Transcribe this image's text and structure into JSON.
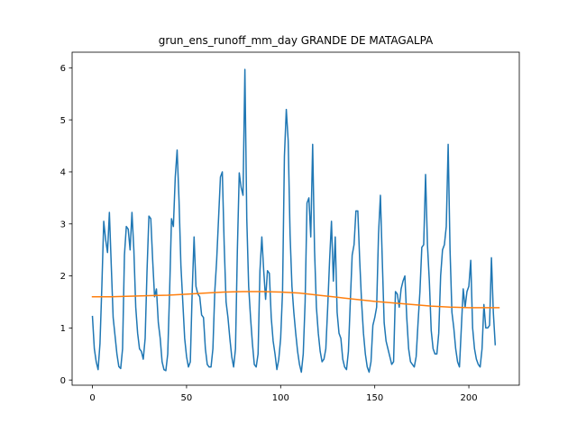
{
  "chart_data": {
    "type": "line",
    "title": "grun_ens_runoff_mm_day GRANDE DE MATAGALPA",
    "xlabel": "",
    "ylabel": "",
    "xlim": [
      -10.8,
      226.8
    ],
    "ylim": [
      -0.1,
      6.3
    ],
    "xticks": [
      0,
      50,
      100,
      150,
      200
    ],
    "yticks": [
      0,
      1,
      2,
      3,
      4,
      5,
      6
    ],
    "grid": false,
    "legend": "none",
    "series": [
      {
        "color": "#1f77b4",
        "values": [
          1.22,
          0.6,
          0.35,
          0.2,
          0.7,
          1.8,
          3.05,
          2.7,
          2.45,
          3.22,
          2.2,
          1.2,
          0.85,
          0.5,
          0.26,
          0.22,
          0.6,
          2.4,
          2.95,
          2.9,
          2.5,
          3.22,
          2.5,
          1.4,
          0.9,
          0.6,
          0.55,
          0.4,
          0.8,
          2.1,
          3.15,
          3.1,
          2.3,
          1.6,
          1.75,
          1.1,
          0.8,
          0.35,
          0.2,
          0.18,
          0.5,
          1.7,
          3.1,
          2.95,
          3.9,
          4.42,
          3.45,
          2.2,
          1.5,
          0.8,
          0.45,
          0.25,
          0.35,
          1.7,
          2.75,
          1.8,
          1.65,
          1.6,
          1.25,
          1.2,
          0.6,
          0.3,
          0.25,
          0.25,
          0.6,
          1.7,
          2.3,
          3.1,
          3.9,
          4.0,
          2.6,
          1.5,
          1.2,
          0.8,
          0.45,
          0.25,
          0.6,
          2.5,
          3.98,
          3.7,
          3.55,
          5.97,
          3.1,
          1.8,
          1.2,
          0.7,
          0.3,
          0.25,
          0.5,
          2.1,
          2.75,
          2.1,
          1.55,
          2.1,
          2.05,
          1.2,
          0.75,
          0.5,
          0.2,
          0.4,
          0.8,
          1.7,
          4.3,
          5.2,
          4.6,
          2.8,
          1.8,
          1.3,
          0.9,
          0.55,
          0.3,
          0.15,
          0.5,
          1.5,
          3.4,
          3.5,
          2.75,
          4.53,
          2.5,
          1.4,
          0.9,
          0.55,
          0.35,
          0.4,
          0.6,
          1.4,
          2.3,
          3.05,
          1.9,
          2.75,
          1.3,
          0.9,
          0.8,
          0.4,
          0.25,
          0.2,
          0.55,
          1.5,
          2.4,
          2.6,
          3.25,
          3.25,
          2.3,
          1.5,
          0.9,
          0.5,
          0.25,
          0.15,
          0.35,
          1.05,
          1.2,
          1.4,
          2.8,
          3.55,
          2.3,
          1.1,
          0.75,
          0.6,
          0.45,
          0.3,
          0.35,
          1.7,
          1.65,
          1.4,
          1.75,
          1.9,
          2.0,
          1.2,
          0.6,
          0.35,
          0.3,
          0.25,
          0.45,
          1.1,
          1.7,
          2.55,
          2.6,
          3.95,
          2.6,
          1.9,
          0.95,
          0.6,
          0.5,
          0.5,
          0.9,
          2.0,
          2.5,
          2.6,
          2.95,
          4.53,
          2.5,
          1.3,
          1.0,
          0.6,
          0.35,
          0.25,
          1.0,
          1.75,
          1.4,
          1.7,
          1.8,
          2.3,
          1.0,
          0.6,
          0.4,
          0.3,
          0.25,
          0.6,
          1.45,
          1.0,
          1.0,
          1.05,
          2.35,
          1.3,
          0.68
        ]
      },
      {
        "color": "#ff7f0e",
        "x": [
          0,
          10,
          20,
          30,
          40,
          50,
          60,
          70,
          80,
          90,
          100,
          110,
          120,
          130,
          140,
          150,
          160,
          170,
          180,
          190,
          200,
          210,
          216
        ],
        "values": [
          1.6,
          1.6,
          1.61,
          1.62,
          1.63,
          1.65,
          1.67,
          1.69,
          1.7,
          1.7,
          1.69,
          1.67,
          1.63,
          1.59,
          1.55,
          1.51,
          1.48,
          1.45,
          1.42,
          1.4,
          1.39,
          1.39,
          1.39
        ]
      }
    ]
  }
}
